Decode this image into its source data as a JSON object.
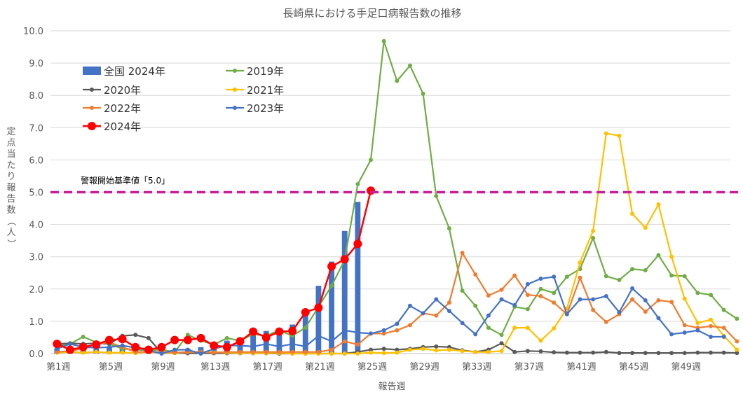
{
  "chart_data": {
    "type": "line",
    "title": "長崎県における手足口病報告数の推移",
    "xlabel": "報告週",
    "ylabel": "定点当たり報告数（人）",
    "ylim": [
      0,
      10
    ],
    "yticks": [
      "0.0",
      "1.0",
      "2.0",
      "3.0",
      "4.0",
      "5.0",
      "6.0",
      "7.0",
      "8.0",
      "9.0",
      "10.0"
    ],
    "xtick_labels": [
      "第1週",
      "第5週",
      "第9週",
      "第13週",
      "第17週",
      "第21週",
      "第25週",
      "第29週",
      "第33週",
      "第37週",
      "第41週",
      "第45週",
      "第49週"
    ],
    "xtick_weeks": [
      1,
      5,
      9,
      13,
      17,
      21,
      25,
      29,
      33,
      37,
      41,
      45,
      49
    ],
    "weeks": 52,
    "grid": "horizontal",
    "legend_position": "upper-left",
    "threshold": {
      "label": "警報開始基準値「5.0」",
      "value": 5.0,
      "color": "#c8209a"
    },
    "bars": {
      "name": "全国 2024年",
      "color": "#4472c4",
      "values": [
        0.16,
        0.22,
        0.2,
        0.18,
        0.2,
        0.22,
        0.18,
        0.16,
        0.15,
        0.12,
        0.15,
        0.2,
        0.3,
        0.4,
        0.5,
        0.6,
        0.7,
        0.78,
        0.9,
        1.3,
        2.1,
        2.85,
        3.8,
        4.7
      ]
    },
    "series": [
      {
        "name": "2019年",
        "color": "#70ad47",
        "marker_size": 3,
        "values": [
          0.25,
          0.3,
          0.52,
          0.35,
          0.3,
          0.15,
          0.12,
          0.1,
          0.12,
          0.05,
          0.58,
          0.4,
          0.28,
          0.48,
          0.4,
          0.6,
          0.55,
          0.72,
          0.55,
          0.8,
          1.45,
          2.1,
          2.9,
          5.25,
          6.0,
          9.68,
          8.45,
          8.92,
          8.05,
          4.88,
          3.88,
          1.95,
          1.48,
          0.8,
          0.58,
          1.45,
          1.38,
          2.0,
          1.88,
          2.38,
          2.62,
          3.58,
          2.4,
          2.28,
          2.62,
          2.58,
          3.05,
          2.42,
          2.4,
          1.88,
          1.82,
          1.35,
          1.08
        ]
      },
      {
        "name": "2020年",
        "color": "#595959",
        "marker_size": 3,
        "values": [
          0.3,
          0.32,
          0.3,
          0.32,
          0.3,
          0.55,
          0.58,
          0.48,
          0.02,
          0.02,
          0.01,
          0.01,
          0.01,
          0.01,
          0.01,
          0.01,
          0.01,
          0.0,
          0.0,
          0.0,
          0.0,
          0.0,
          0.0,
          0.05,
          0.12,
          0.15,
          0.12,
          0.15,
          0.2,
          0.22,
          0.2,
          0.1,
          0.05,
          0.12,
          0.32,
          0.05,
          0.08,
          0.07,
          0.04,
          0.03,
          0.03,
          0.03,
          0.05,
          0.02,
          0.02,
          0.02,
          0.02,
          0.02,
          0.02,
          0.03,
          0.03,
          0.03,
          0.02
        ]
      },
      {
        "name": "2021年",
        "color": "#ffc000",
        "marker_size": 3,
        "values": [
          0.03,
          0.05,
          0.03,
          0.05,
          0.03,
          0.03,
          0.02,
          0.05,
          0.03,
          0.02,
          0.05,
          0.05,
          0.05,
          0.03,
          0.02,
          0.02,
          0.02,
          0.02,
          0.0,
          0.0,
          0.0,
          0.0,
          0.0,
          0.0,
          0.03,
          0.02,
          0.03,
          0.12,
          0.15,
          0.1,
          0.12,
          0.08,
          0.05,
          0.05,
          0.08,
          0.8,
          0.8,
          0.4,
          0.78,
          1.4,
          2.82,
          3.8,
          6.82,
          6.75,
          4.33,
          3.9,
          4.62,
          3.0,
          1.7,
          0.95,
          1.05,
          0.55,
          0.12
        ]
      },
      {
        "name": "2022年",
        "color": "#ed7d31",
        "marker_size": 3,
        "values": [
          0.05,
          0.08,
          0.15,
          0.3,
          0.35,
          0.2,
          0.05,
          0.05,
          0.05,
          0.03,
          0.05,
          0.05,
          0.03,
          0.05,
          0.05,
          0.05,
          0.05,
          0.05,
          0.05,
          0.05,
          0.05,
          0.12,
          0.38,
          0.28,
          0.62,
          0.62,
          0.72,
          0.88,
          1.25,
          1.18,
          1.58,
          3.12,
          2.45,
          1.8,
          1.98,
          2.42,
          1.82,
          1.78,
          1.58,
          1.22,
          2.35,
          1.35,
          0.98,
          1.22,
          1.68,
          1.3,
          1.65,
          1.6,
          0.88,
          0.8,
          0.85,
          0.8,
          0.38
        ]
      },
      {
        "name": "2023年",
        "color": "#4472c4",
        "marker_size": 3,
        "values": [
          0.15,
          0.3,
          0.2,
          0.18,
          0.2,
          0.25,
          0.18,
          0.1,
          0.0,
          0.12,
          0.12,
          0.0,
          0.15,
          0.25,
          0.25,
          0.22,
          0.3,
          0.22,
          0.3,
          0.22,
          0.55,
          0.38,
          0.72,
          0.65,
          0.62,
          0.72,
          0.92,
          1.48,
          1.25,
          1.68,
          1.32,
          0.95,
          0.6,
          1.18,
          1.68,
          1.5,
          2.15,
          2.32,
          2.38,
          1.22,
          1.68,
          1.68,
          1.78,
          1.28,
          2.02,
          1.65,
          1.1,
          0.6,
          0.65,
          0.72,
          0.52,
          0.52
        ]
      },
      {
        "name": "2024年",
        "color": "#ff0000",
        "marker_size": 6,
        "values": [
          0.3,
          0.12,
          0.2,
          0.28,
          0.42,
          0.45,
          0.2,
          0.12,
          0.2,
          0.42,
          0.42,
          0.48,
          0.25,
          0.2,
          0.38,
          0.68,
          0.5,
          0.68,
          0.7,
          1.28,
          1.42,
          2.7,
          2.92,
          3.4,
          5.05
        ]
      }
    ]
  }
}
